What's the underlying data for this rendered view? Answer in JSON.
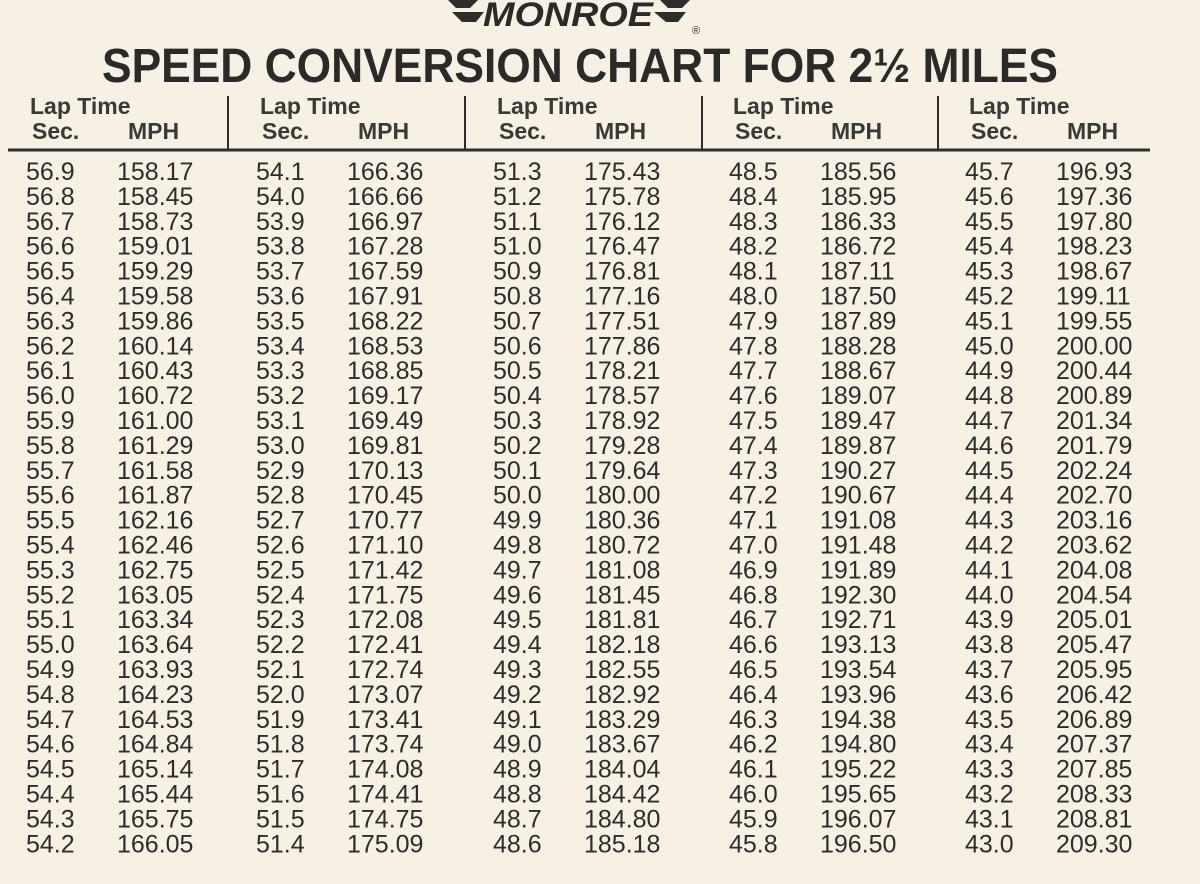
{
  "logo": {
    "text": "MONROE",
    "mark": "®"
  },
  "title": "SPEED CONVERSION CHART FOR 2½ MILES",
  "columns": [
    {
      "header": {
        "line1": "Lap Time",
        "sec": "Sec.",
        "mph": "MPH"
      },
      "rows": [
        [
          "56.9",
          "158.17"
        ],
        [
          "56.8",
          "158.45"
        ],
        [
          "56.7",
          "158.73"
        ],
        [
          "56.6",
          "159.01"
        ],
        [
          "56.5",
          "159.29"
        ],
        [
          "56.4",
          "159.58"
        ],
        [
          "56.3",
          "159.86"
        ],
        [
          "56.2",
          "160.14"
        ],
        [
          "56.1",
          "160.43"
        ],
        [
          "56.0",
          "160.72"
        ],
        [
          "55.9",
          "161.00"
        ],
        [
          "55.8",
          "161.29"
        ],
        [
          "55.7",
          "161.58"
        ],
        [
          "55.6",
          "161.87"
        ],
        [
          "55.5",
          "162.16"
        ],
        [
          "55.4",
          "162.46"
        ],
        [
          "55.3",
          "162.75"
        ],
        [
          "55.2",
          "163.05"
        ],
        [
          "55.1",
          "163.34"
        ],
        [
          "55.0",
          "163.64"
        ],
        [
          "54.9",
          "163.93"
        ],
        [
          "54.8",
          "164.23"
        ],
        [
          "54.7",
          "164.53"
        ],
        [
          "54.6",
          "164.84"
        ],
        [
          "54.5",
          "165.14"
        ],
        [
          "54.4",
          "165.44"
        ],
        [
          "54.3",
          "165.75"
        ],
        [
          "54.2",
          "166.05"
        ]
      ]
    },
    {
      "header": {
        "line1": "Lap Time",
        "sec": "Sec.",
        "mph": "MPH"
      },
      "rows": [
        [
          "54.1",
          "166.36"
        ],
        [
          "54.0",
          "166.66"
        ],
        [
          "53.9",
          "166.97"
        ],
        [
          "53.8",
          "167.28"
        ],
        [
          "53.7",
          "167.59"
        ],
        [
          "53.6",
          "167.91"
        ],
        [
          "53.5",
          "168.22"
        ],
        [
          "53.4",
          "168.53"
        ],
        [
          "53.3",
          "168.85"
        ],
        [
          "53.2",
          "169.17"
        ],
        [
          "53.1",
          "169.49"
        ],
        [
          "53.0",
          "169.81"
        ],
        [
          "52.9",
          "170.13"
        ],
        [
          "52.8",
          "170.45"
        ],
        [
          "52.7",
          "170.77"
        ],
        [
          "52.6",
          "171.10"
        ],
        [
          "52.5",
          "171.42"
        ],
        [
          "52.4",
          "171.75"
        ],
        [
          "52.3",
          "172.08"
        ],
        [
          "52.2",
          "172.41"
        ],
        [
          "52.1",
          "172.74"
        ],
        [
          "52.0",
          "173.07"
        ],
        [
          "51.9",
          "173.41"
        ],
        [
          "51.8",
          "173.74"
        ],
        [
          "51.7",
          "174.08"
        ],
        [
          "51.6",
          "174.41"
        ],
        [
          "51.5",
          "174.75"
        ],
        [
          "51.4",
          "175.09"
        ]
      ]
    },
    {
      "header": {
        "line1": "Lap Time",
        "sec": "Sec.",
        "mph": "MPH"
      },
      "rows": [
        [
          "51.3",
          "175.43"
        ],
        [
          "51.2",
          "175.78"
        ],
        [
          "51.1",
          "176.12"
        ],
        [
          "51.0",
          "176.47"
        ],
        [
          "50.9",
          "176.81"
        ],
        [
          "50.8",
          "177.16"
        ],
        [
          "50.7",
          "177.51"
        ],
        [
          "50.6",
          "177.86"
        ],
        [
          "50.5",
          "178.21"
        ],
        [
          "50.4",
          "178.57"
        ],
        [
          "50.3",
          "178.92"
        ],
        [
          "50.2",
          "179.28"
        ],
        [
          "50.1",
          "179.64"
        ],
        [
          "50.0",
          "180.00"
        ],
        [
          "49.9",
          "180.36"
        ],
        [
          "49.8",
          "180.72"
        ],
        [
          "49.7",
          "181.08"
        ],
        [
          "49.6",
          "181.45"
        ],
        [
          "49.5",
          "181.81"
        ],
        [
          "49.4",
          "182.18"
        ],
        [
          "49.3",
          "182.55"
        ],
        [
          "49.2",
          "182.92"
        ],
        [
          "49.1",
          "183.29"
        ],
        [
          "49.0",
          "183.67"
        ],
        [
          "48.9",
          "184.04"
        ],
        [
          "48.8",
          "184.42"
        ],
        [
          "48.7",
          "184.80"
        ],
        [
          "48.6",
          "185.18"
        ]
      ]
    },
    {
      "header": {
        "line1": "Lap Time",
        "sec": "Sec.",
        "mph": "MPH"
      },
      "rows": [
        [
          "48.5",
          "185.56"
        ],
        [
          "48.4",
          "185.95"
        ],
        [
          "48.3",
          "186.33"
        ],
        [
          "48.2",
          "186.72"
        ],
        [
          "48.1",
          "187.11"
        ],
        [
          "48.0",
          "187.50"
        ],
        [
          "47.9",
          "187.89"
        ],
        [
          "47.8",
          "188.28"
        ],
        [
          "47.7",
          "188.67"
        ],
        [
          "47.6",
          "189.07"
        ],
        [
          "47.5",
          "189.47"
        ],
        [
          "47.4",
          "189.87"
        ],
        [
          "47.3",
          "190.27"
        ],
        [
          "47.2",
          "190.67"
        ],
        [
          "47.1",
          "191.08"
        ],
        [
          "47.0",
          "191.48"
        ],
        [
          "46.9",
          "191.89"
        ],
        [
          "46.8",
          "192.30"
        ],
        [
          "46.7",
          "192.71"
        ],
        [
          "46.6",
          "193.13"
        ],
        [
          "46.5",
          "193.54"
        ],
        [
          "46.4",
          "193.96"
        ],
        [
          "46.3",
          "194.38"
        ],
        [
          "46.2",
          "194.80"
        ],
        [
          "46.1",
          "195.22"
        ],
        [
          "46.0",
          "195.65"
        ],
        [
          "45.9",
          "196.07"
        ],
        [
          "45.8",
          "196.50"
        ]
      ]
    },
    {
      "header": {
        "line1": "Lap Time",
        "sec": "Sec.",
        "mph": "MPH"
      },
      "rows": [
        [
          "45.7",
          "196.93"
        ],
        [
          "45.6",
          "197.36"
        ],
        [
          "45.5",
          "197.80"
        ],
        [
          "45.4",
          "198.23"
        ],
        [
          "45.3",
          "198.67"
        ],
        [
          "45.2",
          "199.11"
        ],
        [
          "45.1",
          "199.55"
        ],
        [
          "45.0",
          "200.00"
        ],
        [
          "44.9",
          "200.44"
        ],
        [
          "44.8",
          "200.89"
        ],
        [
          "44.7",
          "201.34"
        ],
        [
          "44.6",
          "201.79"
        ],
        [
          "44.5",
          "202.24"
        ],
        [
          "44.4",
          "202.70"
        ],
        [
          "44.3",
          "203.16"
        ],
        [
          "44.2",
          "203.62"
        ],
        [
          "44.1",
          "204.08"
        ],
        [
          "44.0",
          "204.54"
        ],
        [
          "43.9",
          "205.01"
        ],
        [
          "43.8",
          "205.47"
        ],
        [
          "43.7",
          "205.95"
        ],
        [
          "43.6",
          "206.42"
        ],
        [
          "43.5",
          "206.89"
        ],
        [
          "43.4",
          "207.37"
        ],
        [
          "43.3",
          "207.85"
        ],
        [
          "43.2",
          "208.33"
        ],
        [
          "43.1",
          "208.81"
        ],
        [
          "43.0",
          "209.30"
        ]
      ]
    }
  ]
}
